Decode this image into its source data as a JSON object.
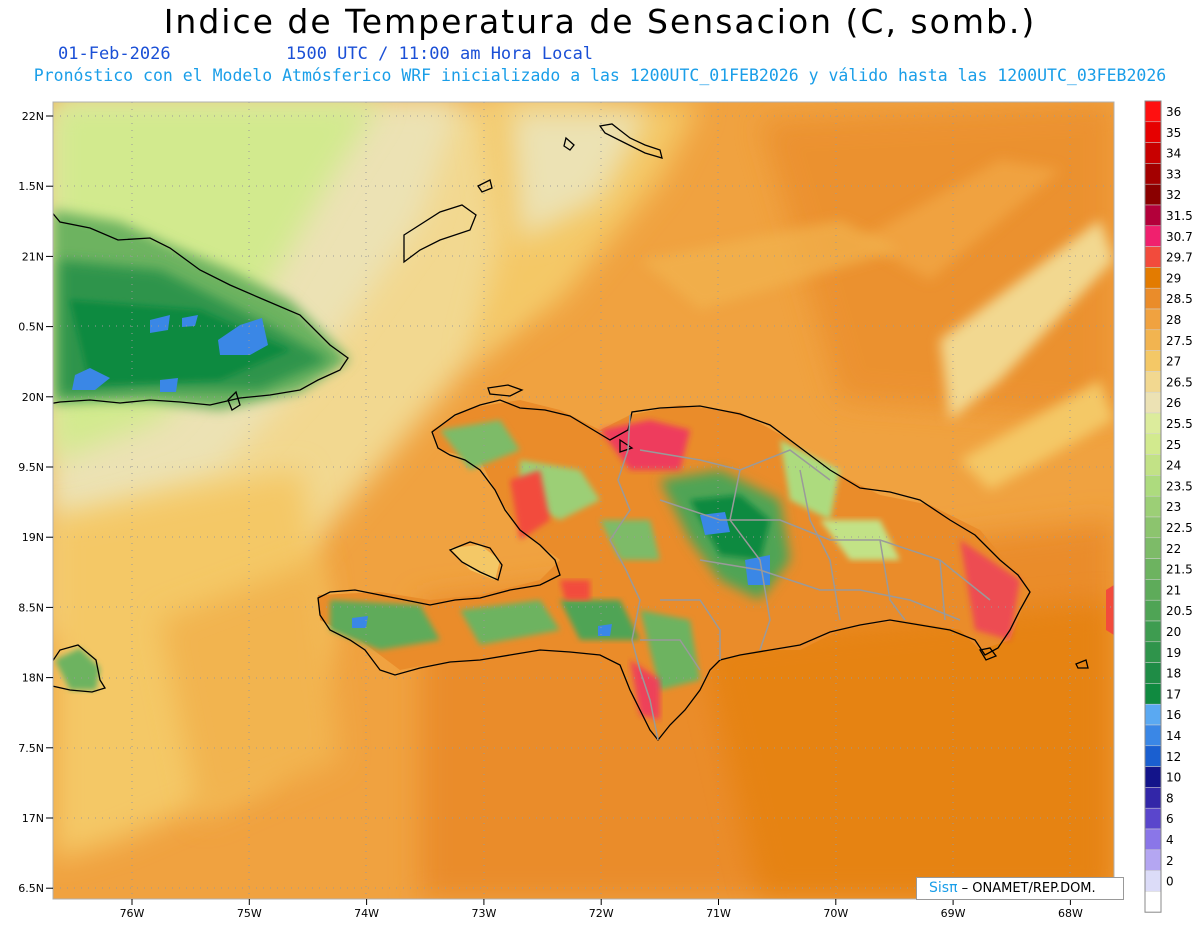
{
  "title": "Indice de Temperatura de Sensacion (C, somb.)",
  "date": "01-Feb-2026",
  "time": "1500 UTC / 11:00 am Hora Local",
  "subtitle": "Pronóstico con el Modelo Atmósferico WRF inicializado a las 1200UTC_01FEB2026 y válido hasta las  1200UTC_03FEB2026",
  "credit": {
    "sis": "Sisπ",
    "org": "– ONAMET/REP.DOM."
  },
  "lat_labels": [
    "22N",
    "1.5N",
    "21N",
    "0.5N",
    "20N",
    "9.5N",
    "19N",
    "8.5N",
    "18N",
    "7.5N",
    "17N",
    "6.5N"
  ],
  "lon_labels": [
    "76W",
    "75W",
    "74W",
    "73W",
    "72W",
    "71W",
    "70W",
    "69W",
    "68W"
  ],
  "legend": [
    {
      "label": "36",
      "color": "#ff1010"
    },
    {
      "label": "35",
      "color": "#e60000"
    },
    {
      "label": "34",
      "color": "#c80000"
    },
    {
      "label": "33",
      "color": "#a30000"
    },
    {
      "label": "32",
      "color": "#8a0000"
    },
    {
      "label": "31.5",
      "color": "#b3003a"
    },
    {
      "label": "30.7",
      "color": "#f0206e"
    },
    {
      "label": "29.7",
      "color": "#f24b3c"
    },
    {
      "label": "29",
      "color": "#e37b00"
    },
    {
      "label": "28.5",
      "color": "#ea8c2a"
    },
    {
      "label": "28",
      "color": "#f0a240"
    },
    {
      "label": "27.5",
      "color": "#f2b450"
    },
    {
      "label": "27",
      "color": "#f4c866"
    },
    {
      "label": "26.5",
      "color": "#f2d890"
    },
    {
      "label": "26",
      "color": "#ece2b4"
    },
    {
      "label": "25.5",
      "color": "#dcec9c"
    },
    {
      "label": "25",
      "color": "#d2ea8e"
    },
    {
      "label": "24",
      "color": "#c2e286"
    },
    {
      "label": "23.5",
      "color": "#addb7e"
    },
    {
      "label": "23",
      "color": "#9ccf76"
    },
    {
      "label": "22.5",
      "color": "#8cc46e"
    },
    {
      "label": "22",
      "color": "#7dbb68"
    },
    {
      "label": "21.5",
      "color": "#6db360"
    },
    {
      "label": "21",
      "color": "#5eab5a"
    },
    {
      "label": "20.5",
      "color": "#4fa455"
    },
    {
      "label": "20",
      "color": "#3e9c50"
    },
    {
      "label": "19",
      "color": "#2f944b"
    },
    {
      "label": "18",
      "color": "#1f8c46"
    },
    {
      "label": "17",
      "color": "#108a40"
    },
    {
      "label": "16",
      "color": "#5aa9f2"
    },
    {
      "label": "14",
      "color": "#3a87e6"
    },
    {
      "label": "12",
      "color": "#1a5fd0"
    },
    {
      "label": "10",
      "color": "#13148a"
    },
    {
      "label": "8",
      "color": "#3226a8"
    },
    {
      "label": "6",
      "color": "#5a46cc"
    },
    {
      "label": "4",
      "color": "#8a76e8"
    },
    {
      "label": "2",
      "color": "#b4a6f2"
    },
    {
      "label": "0",
      "color": "#dcdcf8"
    },
    {
      "label": "",
      "color": "#ffffff"
    }
  ]
}
